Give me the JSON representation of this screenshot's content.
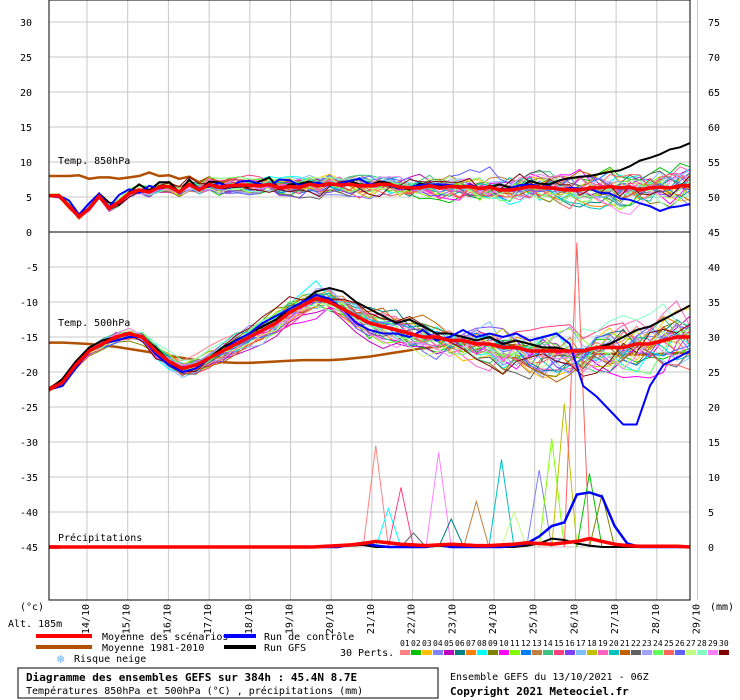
{
  "chart_data": {
    "type": "line",
    "xlabel": "",
    "x_ticks": [
      "14/10",
      "15/10",
      "16/10",
      "17/10",
      "18/10",
      "19/10",
      "20/10",
      "21/10",
      "22/10",
      "23/10",
      "24/10",
      "25/10",
      "26/10",
      "27/10",
      "28/10",
      "29/10"
    ],
    "left_axis": {
      "unit": "(°c)",
      "t850_ticks": [
        0,
        5,
        10,
        15,
        20,
        25,
        30
      ],
      "t500_ticks": [
        -45,
        -40,
        -35,
        -30,
        -25,
        -20,
        -15,
        -10,
        -5
      ]
    },
    "right_axis": {
      "unit": "(mm)",
      "t850_ticks": [
        45,
        50,
        55,
        60,
        65,
        70,
        75
      ],
      "t500_ticks": [
        0,
        5,
        10,
        15,
        20,
        25,
        30,
        35,
        40
      ]
    },
    "panel_labels": {
      "t850": "Temp. 850hPa",
      "t500": "Temp. 500hPa",
      "precip": "Précipitations"
    },
    "altitude": "Alt. 185m",
    "series_labels": {
      "mean": "Moyenne des scénarios",
      "climatology": "Moyenne 1981-2010",
      "snow": "Risque neige",
      "control": "Run de contrôle",
      "gfs": "Run GFS",
      "perts": "30 Perts."
    },
    "colors": {
      "mean": "#ff0000",
      "climatology": "#b05000",
      "control": "#0000ff",
      "gfs": "#000000",
      "snow": "#6ab0ff"
    },
    "pert_numbers": [
      "01",
      "02",
      "03",
      "04",
      "05",
      "06",
      "07",
      "08",
      "09",
      "10",
      "11",
      "12",
      "13",
      "14",
      "15",
      "16",
      "17",
      "18",
      "19",
      "20",
      "21",
      "22",
      "23",
      "24",
      "25",
      "26",
      "27",
      "28",
      "29",
      "30"
    ],
    "pert_colors": [
      "#ff8080",
      "#00c000",
      "#ffc000",
      "#8080ff",
      "#c000c0",
      "#008080",
      "#ff8000",
      "#00ffff",
      "#808000",
      "#ff00ff",
      "#80ff00",
      "#0080ff",
      "#c08040",
      "#40c080",
      "#ff4080",
      "#8040ff",
      "#80c0ff",
      "#c0c000",
      "#ff60c0",
      "#00c0c0",
      "#c06000",
      "#606060",
      "#a0a0ff",
      "#60ff60",
      "#ff6060",
      "#6060ff",
      "#c0ff80",
      "#80ffc0",
      "#ff80ff",
      "#800000"
    ],
    "t850_series": {
      "mean": [
        5.2,
        5.2,
        3.7,
        2.2,
        3.3,
        5.1,
        3.4,
        4.3,
        5.5,
        6.0,
        5.7,
        6.4,
        6.5,
        5.7,
        6.8,
        6.0,
        6.8,
        6.4,
        6.6,
        6.7,
        6.7,
        6.6,
        6.8,
        6.3,
        6.5,
        6.4,
        6.8,
        6.6,
        6.9,
        6.7,
        6.8,
        6.6,
        6.6,
        6.8,
        6.8,
        6.4,
        6.3,
        6.3,
        6.6,
        6.3,
        6.5,
        6.4,
        6.5,
        6.2,
        6.4,
        6.0,
        6.0,
        6.2,
        6.5,
        6.4,
        6.3,
        6.1,
        6.0,
        6.0,
        6.3,
        6.3,
        6.5,
        6.3,
        6.4,
        6.0,
        6.3,
        6.4,
        6.3,
        6.6,
        6.6
      ],
      "climatology": [
        8.0,
        8.0,
        8.0,
        8.1,
        7.6,
        7.8,
        7.8,
        7.6,
        7.8,
        8.0,
        8.5,
        8.0,
        8.1,
        7.6,
        7.9,
        7.1,
        7.8,
        7.0,
        7.5,
        7.4,
        7.2,
        7.3,
        7.5,
        7.0,
        7.2,
        7.3,
        7.2,
        7.4,
        7.0,
        7.2,
        7.0,
        6.8,
        6.9,
        6.7,
        6.6,
        6.9,
        6.8,
        6.5,
        6.9,
        6.7,
        6.6,
        6.7,
        6.5,
        6.4,
        6.3,
        6.3,
        6.4,
        6.4,
        6.1,
        6.1,
        6.3,
        6.5,
        6.4,
        6.1,
        6.2,
        6.0,
        6.1,
        6.3,
        6.0,
        6.3,
        6.4,
        6.4,
        6.3,
        6.3,
        6.4
      ],
      "control": [
        5.2,
        5.2,
        4.5,
        2.5,
        4.1,
        5.5,
        3.6,
        5.3,
        6.1,
        5.6,
        6.6,
        6.2,
        6.5,
        5.6,
        6.8,
        6.2,
        6.5,
        7.0,
        6.3,
        7.2,
        7.3,
        6.9,
        6.6,
        7.5,
        7.4,
        6.7,
        6.9,
        7.0,
        6.7,
        6.9,
        7.3,
        7.6,
        6.8,
        6.9,
        6.6,
        6.2,
        6.4,
        6.7,
        6.8,
        6.8,
        6.7,
        6.3,
        6.7,
        6.3,
        6.4,
        6.1,
        6.2,
        6.7,
        6.8,
        6.5,
        6.5,
        6.0,
        6.3,
        6.2,
        6.2,
        5.6,
        5.5,
        4.8,
        4.6,
        4.1,
        3.7,
        3.0,
        3.5,
        3.7,
        4.0
      ],
      "gfs": [
        5.2,
        5.3,
        3.7,
        2.5,
        3.3,
        5.5,
        4.2,
        3.9,
        5.7,
        6.8,
        5.9,
        7.1,
        7.1,
        5.7,
        7.5,
        6.0,
        7.2,
        7.1,
        6.4,
        6.5,
        6.5,
        7.2,
        7.8,
        6.1,
        6.8,
        6.9,
        7.2,
        6.6,
        6.7,
        6.8,
        7.3,
        6.8,
        6.7,
        7.2,
        7.0,
        6.3,
        6.1,
        6.9,
        6.7,
        6.6,
        6.7,
        6.5,
        6.6,
        6.2,
        6.4,
        6.8,
        6.4,
        6.2,
        7.3,
        6.9,
        6.8,
        7.4,
        7.7,
        7.9,
        8.0,
        8.3,
        8.6,
        8.8,
        9.4,
        10.2,
        10.6,
        11.1,
        11.8,
        12.1,
        12.7
      ]
    },
    "t500_series": {
      "mean": [
        -22.5,
        -21.5,
        -19.0,
        -17.0,
        -16.0,
        -15.0,
        -14.5,
        -15.0,
        -17.0,
        -18.5,
        -19.5,
        -19.0,
        -18.0,
        -17.0,
        -16.0,
        -15.0,
        -14.0,
        -13.0,
        -11.5,
        -10.5,
        -9.5,
        -10.0,
        -11.0,
        -12.0,
        -13.0,
        -13.5,
        -14.0,
        -14.5,
        -15.0,
        -15.0,
        -15.5,
        -15.5,
        -16.0,
        -16.0,
        -16.5,
        -16.5,
        -17.0,
        -17.0,
        -17.0,
        -17.0,
        -17.0,
        -16.5,
        -16.5,
        -16.5,
        -16.0,
        -16.0,
        -15.5,
        -15.0,
        -15.0
      ],
      "climatology": [
        -15.8,
        -15.8,
        -15.9,
        -16.0,
        -16.2,
        -16.4,
        -16.7,
        -17.0,
        -17.3,
        -17.7,
        -18.0,
        -18.3,
        -18.5,
        -18.6,
        -18.7,
        -18.7,
        -18.6,
        -18.5,
        -18.4,
        -18.3,
        -18.3,
        -18.3,
        -18.2,
        -18.0,
        -17.8,
        -17.5,
        -17.2,
        -16.9,
        -16.6,
        -16.4,
        -16.2,
        -16.1,
        -16.0,
        -16.0,
        -16.1,
        -16.2,
        -16.4,
        -16.6,
        -16.8,
        -17.0,
        -17.2,
        -17.3,
        -17.4,
        -17.5,
        -17.5,
        -17.5,
        -17.4,
        -17.3,
        -17.2
      ],
      "control": [
        -22.5,
        -22.0,
        -19.5,
        -17.0,
        -16.0,
        -15.5,
        -15.0,
        -15.0,
        -17.5,
        -19.0,
        -20.0,
        -19.5,
        -18.0,
        -17.0,
        -15.5,
        -14.5,
        -13.0,
        -12.0,
        -11.0,
        -10.0,
        -9.0,
        -9.5,
        -11.0,
        -13.0,
        -14.0,
        -14.5,
        -14.5,
        -15.0,
        -14.0,
        -15.5,
        -15.0,
        -14.0,
        -15.0,
        -14.5,
        -15.0,
        -14.5,
        -15.5,
        -15.0,
        -14.5,
        -16.0,
        -22.0,
        -23.5,
        -25.5,
        -27.5,
        -27.5,
        -22.0,
        -19.0,
        -18.0,
        -17.0
      ],
      "gfs": [
        -22.5,
        -21.0,
        -18.5,
        -16.5,
        -15.5,
        -15.0,
        -14.5,
        -15.0,
        -16.5,
        -18.5,
        -19.5,
        -19.0,
        -18.0,
        -16.5,
        -15.5,
        -14.5,
        -13.5,
        -12.5,
        -11.0,
        -10.0,
        -8.5,
        -8.0,
        -8.5,
        -10.0,
        -11.0,
        -12.0,
        -13.0,
        -12.5,
        -13.5,
        -14.5,
        -14.5,
        -15.0,
        -15.5,
        -15.0,
        -16.0,
        -15.5,
        -16.0,
        -16.5,
        -16.5,
        -17.0,
        -17.0,
        -16.5,
        -16.0,
        -15.0,
        -14.0,
        -13.5,
        -12.5,
        -11.5,
        -10.5
      ]
    },
    "precip_series": {
      "mean": [
        0,
        0,
        0,
        0,
        0,
        0,
        0,
        0,
        0,
        0,
        0,
        0,
        0,
        0,
        0,
        0,
        0,
        0,
        0,
        0,
        0,
        0,
        0.1,
        0.2,
        0.3,
        0.5,
        0.8,
        0.6,
        0.4,
        0.3,
        0.2,
        0.3,
        0.4,
        0.3,
        0.2,
        0.2,
        0.3,
        0.4,
        0.6,
        0.5,
        0.4,
        0.6,
        0.8,
        1.2,
        0.8,
        0.4,
        0.2,
        0.1,
        0.1,
        0.1,
        0.1,
        0
      ],
      "control": [
        0,
        0,
        0,
        0,
        0,
        0,
        0,
        0,
        0,
        0,
        0,
        0,
        0,
        0,
        0,
        0,
        0,
        0,
        0,
        0,
        0,
        0,
        0,
        0,
        0.3,
        0.6,
        0.2,
        0,
        0,
        0,
        0,
        0.3,
        0,
        0,
        0,
        0,
        0,
        0.2,
        0.5,
        1.5,
        3.0,
        3.5,
        7.5,
        7.8,
        7.2,
        3.0,
        0.5,
        0,
        0,
        0,
        0,
        0
      ],
      "gfs": [
        0,
        0,
        0,
        0,
        0,
        0,
        0,
        0,
        0,
        0,
        0,
        0,
        0,
        0,
        0,
        0,
        0,
        0,
        0,
        0,
        0,
        0,
        0,
        0.1,
        0.2,
        0.3,
        0,
        0,
        0,
        0,
        0,
        0.2,
        0,
        0.1,
        0,
        0,
        0,
        0,
        0.2,
        0.5,
        1.2,
        1.0,
        0.5,
        0.2,
        0,
        0,
        0,
        0,
        0,
        0,
        0,
        0
      ]
    },
    "precip_spikes": [
      [
        26,
        14.5
      ],
      [
        27,
        5.5
      ],
      [
        28,
        8.5
      ],
      [
        29,
        2.0
      ],
      [
        31,
        13.5
      ],
      [
        32,
        4.0
      ],
      [
        34,
        6.5
      ],
      [
        36,
        12.5
      ],
      [
        37,
        5.0
      ],
      [
        39,
        11.0
      ],
      [
        40,
        15.5
      ],
      [
        41,
        20.5
      ],
      [
        42,
        43.5
      ],
      [
        43,
        10.5
      ],
      [
        44,
        7.5
      ]
    ],
    "footer": {
      "title": "Diagramme des ensembles GEFS sur 384h : 45.4N 8.7E",
      "subtitle": "Températures 850hPa et 500hPa (°C) , précipitations (mm)",
      "run_info": "Ensemble GEFS du 13/10/2021 - 06Z",
      "copyright": "Copyright 2021 Meteociel.fr"
    }
  }
}
